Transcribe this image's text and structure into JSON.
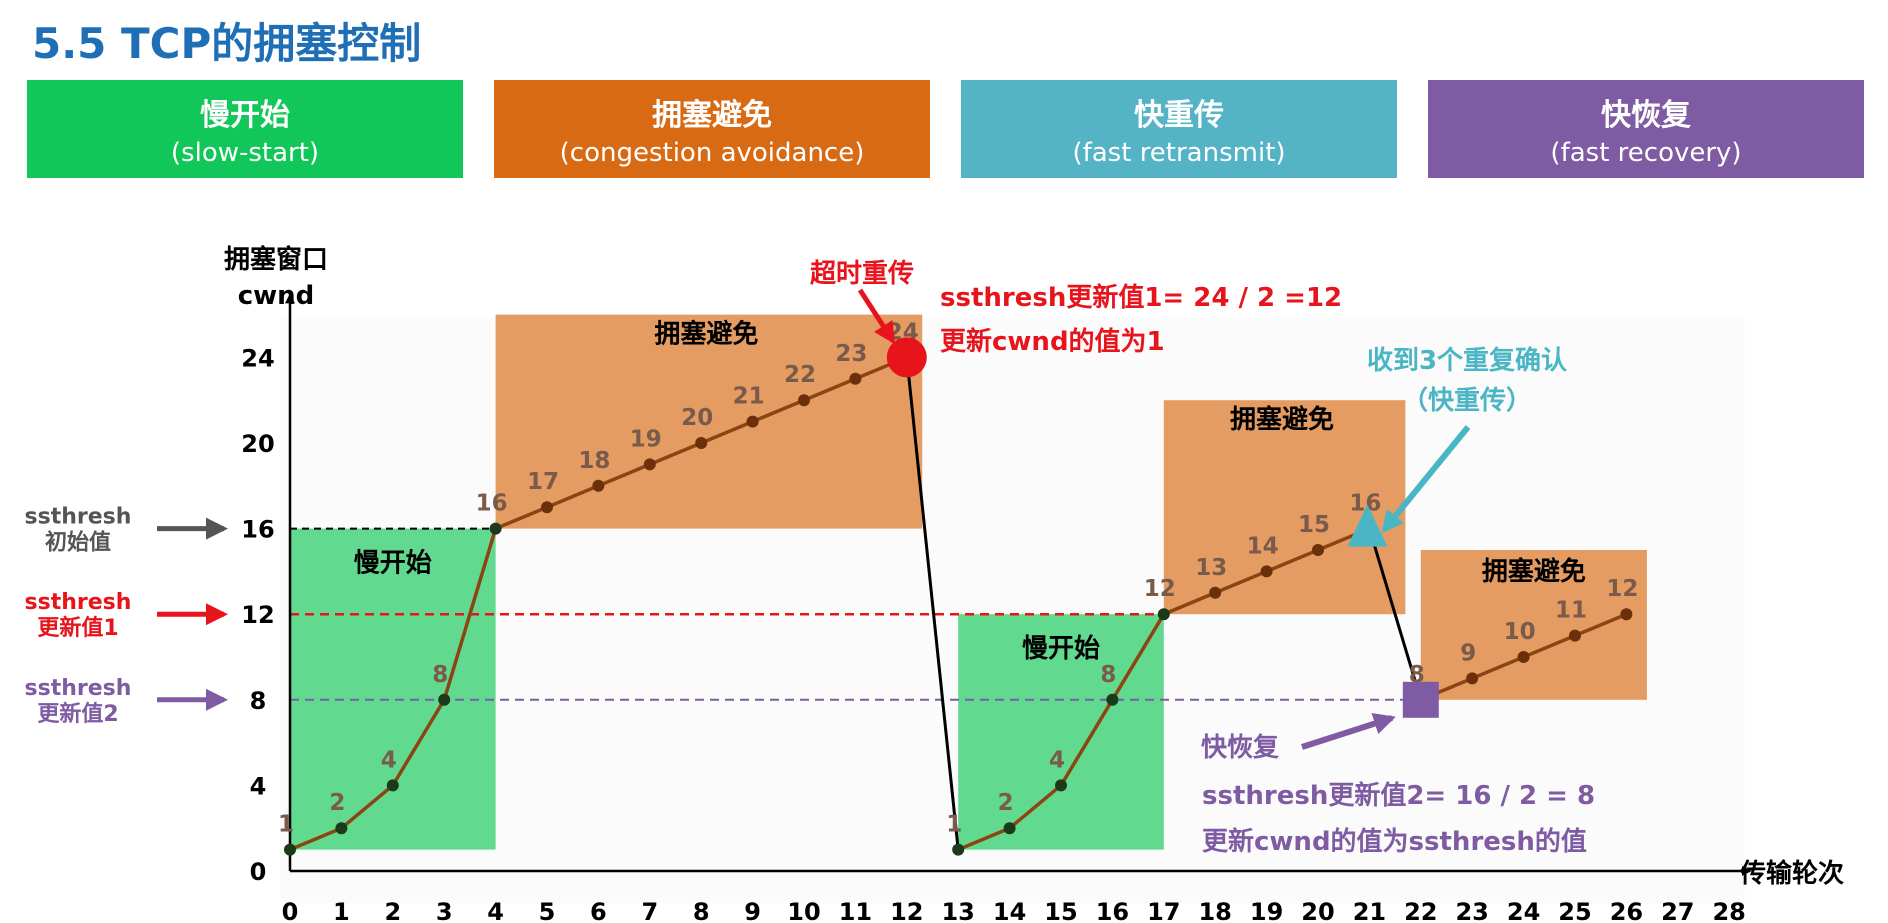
{
  "page_title": "5.5 TCP的拥塞控制",
  "phases": [
    {
      "name": "慢开始",
      "en": "(slow-start)",
      "color": "#12c75a"
    },
    {
      "name": "拥塞避免",
      "en": "(congestion avoidance)",
      "color": "#d96a14"
    },
    {
      "name": "快重传",
      "en": "(fast retransmit)",
      "color": "#55b3c6"
    },
    {
      "name": "快恢复",
      "en": "(fast recovery)",
      "color": "#7e5ba2"
    }
  ],
  "colors": {
    "ss_region": "#61d98f",
    "ca_region": "#e59c62",
    "line": "#8b4513",
    "red": "#e8141c",
    "teal": "#4ab5c4",
    "purple": "#7e5ba2",
    "gray": "#555555"
  },
  "chart_data": {
    "type": "line",
    "ylabel": "拥塞窗口\ncwnd",
    "ylabel_lines": [
      "拥塞窗口",
      "cwnd"
    ],
    "xlabel": "传输轮次",
    "xlim": [
      0,
      28
    ],
    "ylim": [
      0,
      26
    ],
    "x_ticks": [
      0,
      1,
      2,
      3,
      4,
      5,
      6,
      7,
      8,
      9,
      10,
      11,
      12,
      13,
      14,
      15,
      16,
      17,
      18,
      19,
      20,
      21,
      22,
      23,
      24,
      25,
      26,
      27,
      28
    ],
    "y_ticks": [
      0,
      4,
      8,
      12,
      16,
      20,
      24
    ],
    "series": [
      {
        "name": "cwnd",
        "x": [
          0,
          1,
          2,
          3,
          4,
          5,
          6,
          7,
          8,
          9,
          10,
          11,
          12,
          13,
          14,
          15,
          16,
          17,
          18,
          19,
          20,
          21,
          22,
          23,
          24,
          25,
          26
        ],
        "values": [
          1,
          2,
          4,
          8,
          16,
          17,
          18,
          19,
          20,
          21,
          22,
          23,
          24,
          1,
          2,
          4,
          8,
          12,
          13,
          14,
          15,
          16,
          8,
          9,
          10,
          11,
          12
        ]
      }
    ],
    "regions": [
      {
        "label": "慢开始",
        "type": "slow-start",
        "x0": 0,
        "x1": 4,
        "y0": 1,
        "y1": 16
      },
      {
        "label": "拥塞避免",
        "type": "congestion-avoidance",
        "x0": 4,
        "x1": 12.3,
        "y0": 16,
        "y1": 26
      },
      {
        "label": "慢开始",
        "type": "slow-start",
        "x0": 13,
        "x1": 17,
        "y0": 1,
        "y1": 12
      },
      {
        "label": "拥塞避免",
        "type": "congestion-avoidance",
        "x0": 17,
        "x1": 21.7,
        "y0": 12,
        "y1": 22
      },
      {
        "label": "拥塞避免",
        "type": "congestion-avoidance",
        "x0": 22,
        "x1": 26.4,
        "y0": 8,
        "y1": 15
      }
    ],
    "thresholds": [
      {
        "y": 16,
        "label": [
          "ssthresh",
          "初始值"
        ],
        "color": "#555555"
      },
      {
        "y": 12,
        "label": [
          "ssthresh",
          "更新值1"
        ],
        "color": "#e8141c"
      },
      {
        "y": 8,
        "label": [
          "ssthresh",
          "更新值2"
        ],
        "color": "#7e5ba2"
      }
    ],
    "annotations": {
      "timeout": "超时重传",
      "update1": [
        "ssthresh更新值1= 24 / 2 =12",
        "更新cwnd的值为1"
      ],
      "fast_retransmit": [
        "收到3个重复确认",
        "（快重传）"
      ],
      "fast_recovery": "快恢复",
      "update2": [
        "ssthresh更新值2= 16 / 2 = 8",
        "更新cwnd的值为ssthresh的值"
      ]
    }
  }
}
